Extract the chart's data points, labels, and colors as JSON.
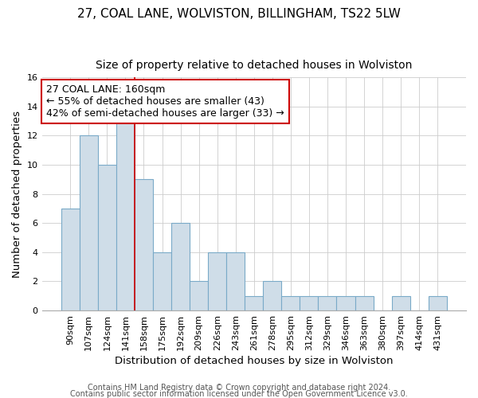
{
  "title": "27, COAL LANE, WOLVISTON, BILLINGHAM, TS22 5LW",
  "subtitle": "Size of property relative to detached houses in Wolviston",
  "xlabel": "Distribution of detached houses by size in Wolviston",
  "ylabel": "Number of detached properties",
  "bar_labels": [
    "90sqm",
    "107sqm",
    "124sqm",
    "141sqm",
    "158sqm",
    "175sqm",
    "192sqm",
    "209sqm",
    "226sqm",
    "243sqm",
    "261sqm",
    "278sqm",
    "295sqm",
    "312sqm",
    "329sqm",
    "346sqm",
    "363sqm",
    "380sqm",
    "397sqm",
    "414sqm",
    "431sqm"
  ],
  "bar_values": [
    7,
    12,
    10,
    13,
    9,
    4,
    6,
    2,
    4,
    4,
    1,
    2,
    1,
    1,
    1,
    1,
    1,
    0,
    1,
    0,
    1
  ],
  "bar_facecolor": "#cfdde8",
  "bar_edgecolor": "#7aaac8",
  "highlight_line_after_bar": 3,
  "ylim": [
    0,
    16
  ],
  "yticks": [
    0,
    2,
    4,
    6,
    8,
    10,
    12,
    14,
    16
  ],
  "annotation_text": "27 COAL LANE: 160sqm\n← 55% of detached houses are smaller (43)\n42% of semi-detached houses are larger (33) →",
  "annotation_box_facecolor": "#ffffff",
  "annotation_box_edgecolor": "#cc0000",
  "footer_line1": "Contains HM Land Registry data © Crown copyright and database right 2024.",
  "footer_line2": "Contains public sector information licensed under the Open Government Licence v3.0.",
  "background_color": "#ffffff",
  "grid_color": "#cccccc",
  "title_fontsize": 11,
  "subtitle_fontsize": 10,
  "axis_label_fontsize": 9.5,
  "tick_fontsize": 8,
  "annotation_fontsize": 9,
  "footer_fontsize": 7
}
